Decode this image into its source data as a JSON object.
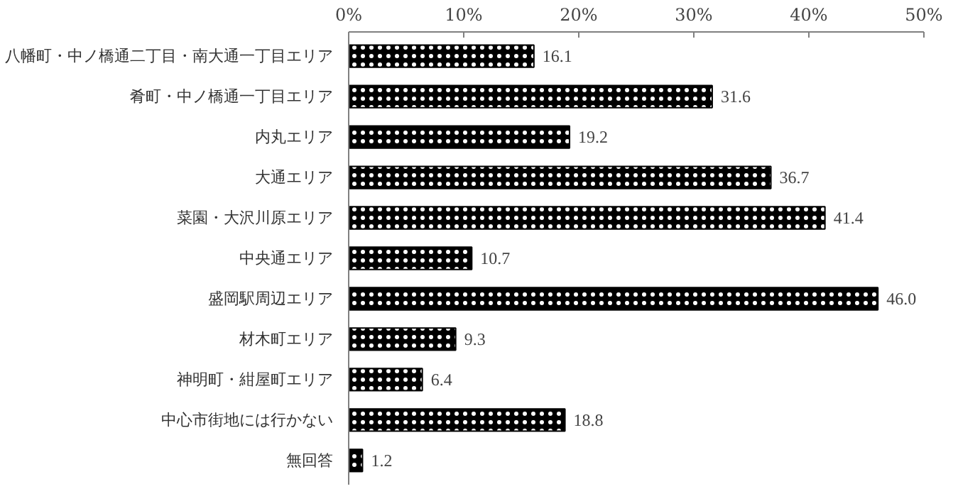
{
  "chart_data": {
    "type": "bar",
    "orientation": "horizontal",
    "categories": [
      "八幡町・中ノ橋通二丁目・南大通一丁目エリア",
      "肴町・中ノ橋通一丁目エリア",
      "内丸エリア",
      "大通エリア",
      "菜園・大沢川原エリア",
      "中央通エリア",
      "盛岡駅周辺エリア",
      "材木町エリア",
      "神明町・紺屋町エリア",
      "中心市街地には行かない",
      "無回答"
    ],
    "values": [
      16.1,
      31.6,
      19.2,
      36.7,
      41.4,
      10.7,
      46.0,
      9.3,
      6.4,
      18.8,
      1.2
    ],
    "value_labels": [
      "16.1",
      "31.6",
      "19.2",
      "36.7",
      "41.4",
      "10.7",
      "46.0",
      "9.3",
      "6.4",
      "18.8",
      "1.2"
    ],
    "color": "#000000",
    "xlim": [
      0,
      50
    ],
    "xticks": [
      {
        "value": 0,
        "label": "0%"
      },
      {
        "value": 10,
        "label": "10%"
      },
      {
        "value": 20,
        "label": "20%"
      },
      {
        "value": 30,
        "label": "30%"
      },
      {
        "value": 40,
        "label": "40%"
      },
      {
        "value": 50,
        "label": "50%"
      }
    ],
    "grid": false
  }
}
